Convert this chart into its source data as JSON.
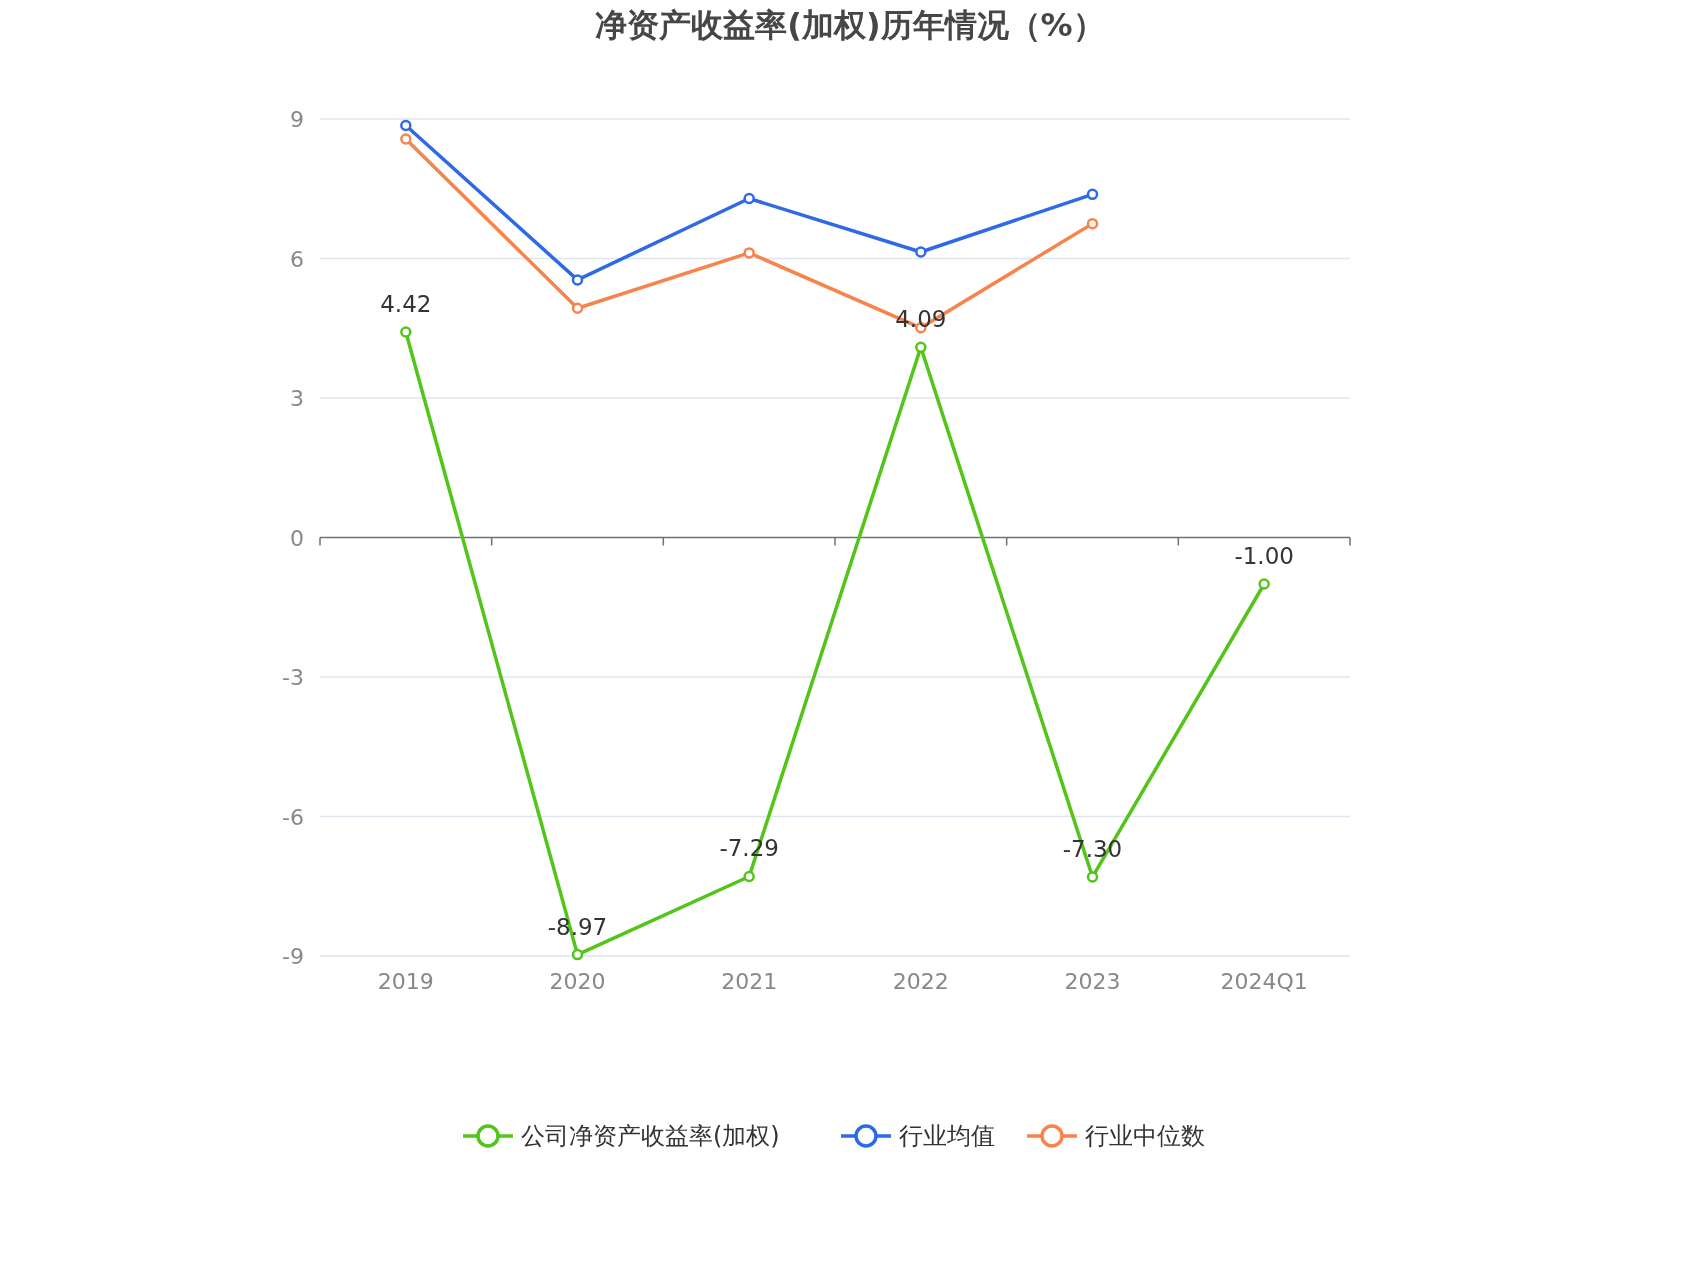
{
  "chart_data": {
    "type": "line",
    "title": "净资产收益率(加权)历年情况（%）",
    "categories": [
      "2019",
      "2020",
      "2021",
      "2022",
      "2023",
      "2024Q1"
    ],
    "series": [
      {
        "name": "公司净资产收益率(加权)",
        "color": "#52c41a",
        "values": [
          4.42,
          -8.97,
          -7.29,
          4.09,
          -7.3,
          -1.0
        ],
        "value_labels": [
          "4.42",
          "-8.97",
          "-7.29",
          "4.09",
          "-7.30",
          "-1.00"
        ]
      },
      {
        "name": "行业均值",
        "color": "#2f6ae6",
        "values": [
          8.86,
          5.54,
          7.29,
          6.14,
          7.38,
          null
        ]
      },
      {
        "name": "行业中位数",
        "color": "#f7834d",
        "values": [
          8.57,
          4.93,
          6.12,
          4.51,
          6.75,
          null
        ]
      }
    ],
    "ylim": [
      -9,
      9
    ],
    "yticks": [
      -9,
      -6,
      -3,
      0,
      3,
      6,
      9
    ],
    "grid": "y",
    "legend": "bottom",
    "marker": "circle",
    "line_style": "solid"
  }
}
